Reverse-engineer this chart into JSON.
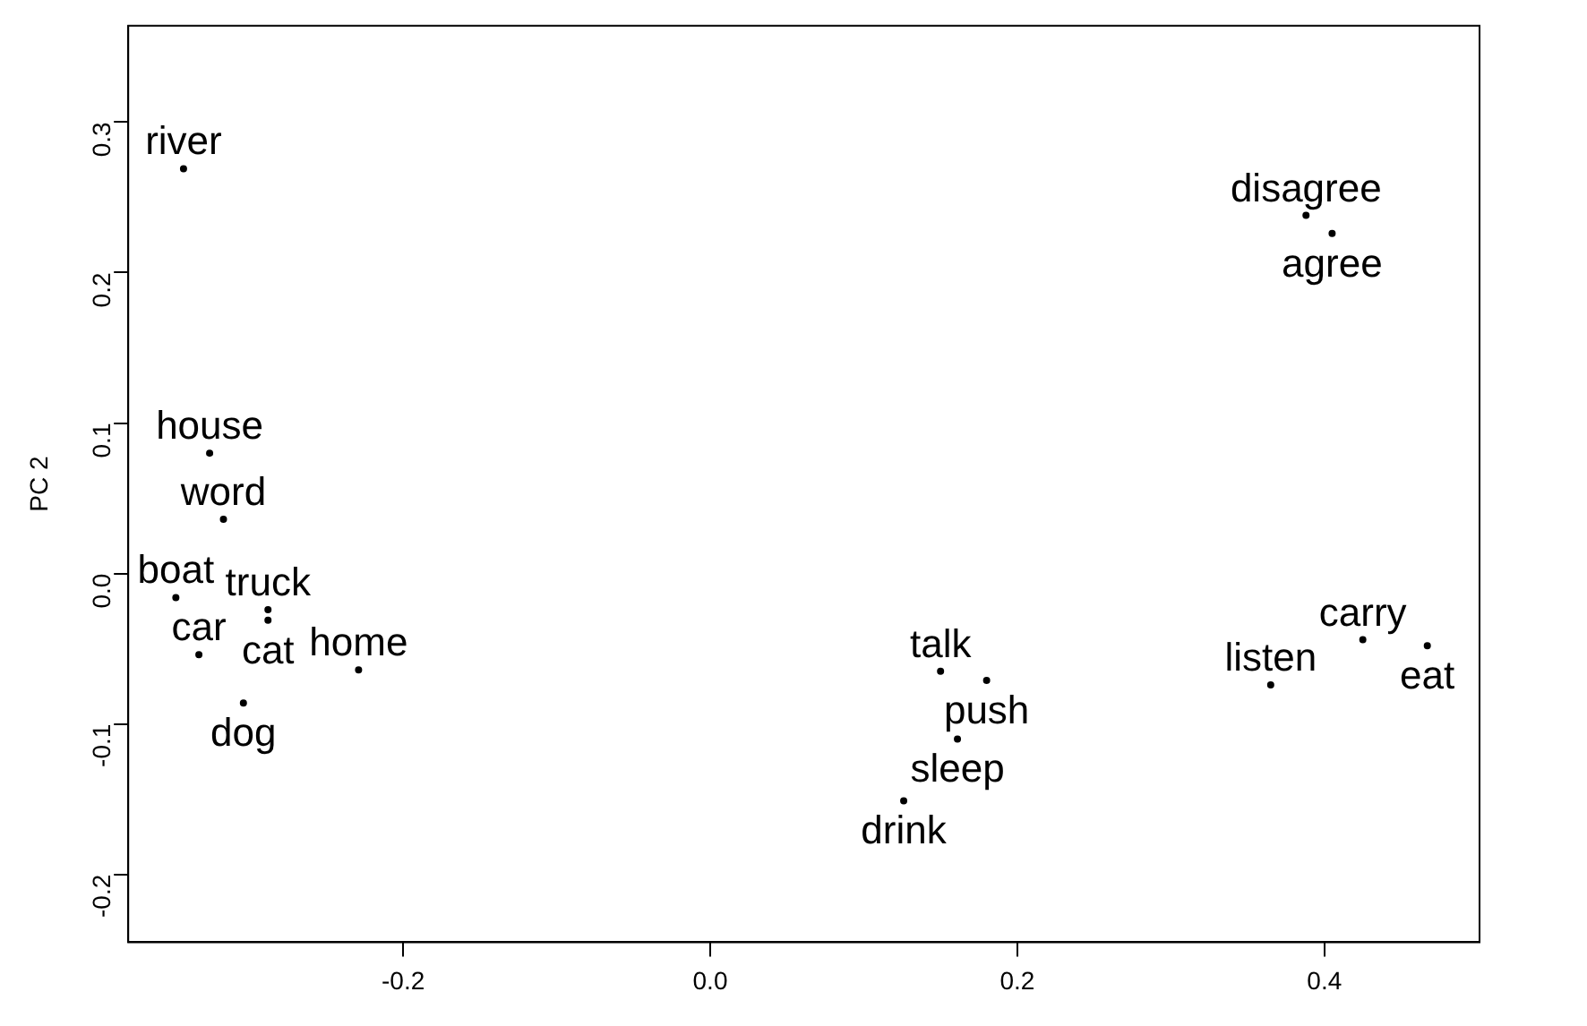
{
  "chart_data": {
    "type": "scatter",
    "ylabel": "PC 2",
    "marker": "circle",
    "grid": false,
    "xlim": [
      -0.379,
      0.501
    ],
    "xticks": [
      -0.2,
      {
        "value": 0,
        "label": "0.0"
      },
      0.2,
      0.4
    ],
    "ylim": [
      -0.245,
      0.364
    ],
    "yticks": [
      -0.2,
      -0.1,
      {
        "value": 0,
        "label": "0.0"
      },
      0.1,
      0.2,
      0.3
    ],
    "x": [
      -0.343,
      -0.326,
      -0.317,
      -0.348,
      -0.288,
      -0.288,
      -0.333,
      -0.304,
      -0.229,
      0.15,
      0.18,
      0.161,
      0.126,
      0.365,
      0.425,
      0.467,
      0.388,
      0.405
    ],
    "values": [
      0.269,
      0.08,
      0.036,
      -0.016,
      -0.024,
      -0.031,
      -0.054,
      -0.086,
      -0.064,
      -0.065,
      -0.071,
      -0.11,
      -0.151,
      -0.074,
      -0.044,
      -0.048,
      0.238,
      0.226
    ],
    "value_labels": [
      "river",
      "house",
      "word",
      "boat",
      "truck",
      "cat",
      "car",
      "dog",
      "home",
      "talk",
      "push",
      "sleep",
      "drink",
      "listen",
      "carry",
      "eat",
      "disagree",
      "agree"
    ],
    "color": "#000000"
  }
}
